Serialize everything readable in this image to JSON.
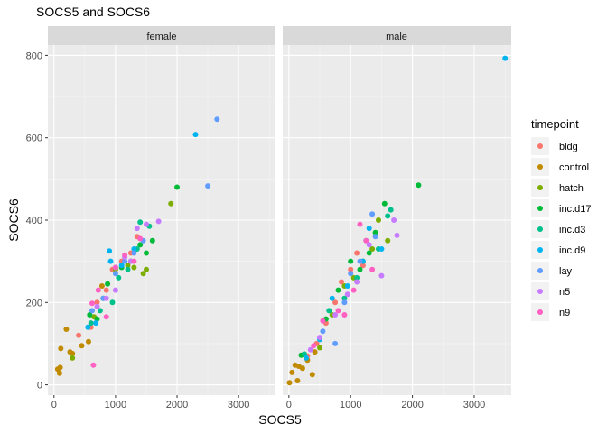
{
  "chart_data": {
    "type": "scatter",
    "title": "SOCS5 and SOCS6",
    "xlabel": "SOCS5",
    "ylabel": "SOCS6",
    "xlim": [
      -100,
      3600
    ],
    "ylim": [
      -25,
      825
    ],
    "x_ticks": [
      0,
      1000,
      2000,
      3000
    ],
    "y_ticks": [
      0,
      200,
      400,
      600,
      800
    ],
    "grid": true,
    "legend_position": "right",
    "legend_title": "timepoint",
    "panels": [
      "female",
      "male"
    ],
    "series": [
      {
        "name": "bldg",
        "color": "#F8766D"
      },
      {
        "name": "control",
        "color": "#C08B00"
      },
      {
        "name": "hatch",
        "color": "#7CAE00"
      },
      {
        "name": "inc.d17",
        "color": "#00BA38"
      },
      {
        "name": "inc.d3",
        "color": "#00C08B"
      },
      {
        "name": "inc.d9",
        "color": "#00B4F0"
      },
      {
        "name": "lay",
        "color": "#619CFF"
      },
      {
        "name": "n5",
        "color": "#C77CFF"
      },
      {
        "name": "n9",
        "color": "#FF61C3"
      }
    ],
    "points": {
      "female": [
        [
          60,
          38,
          "control"
        ],
        [
          90,
          28,
          "control"
        ],
        [
          100,
          42,
          "control"
        ],
        [
          110,
          88,
          "control"
        ],
        [
          200,
          135,
          "control"
        ],
        [
          260,
          80,
          "control"
        ],
        [
          300,
          76,
          "control"
        ],
        [
          450,
          95,
          "control"
        ],
        [
          560,
          105,
          "control"
        ],
        [
          780,
          240,
          "control"
        ],
        [
          400,
          120,
          "bldg"
        ],
        [
          600,
          140,
          "bldg"
        ],
        [
          700,
          200,
          "bldg"
        ],
        [
          850,
          230,
          "bldg"
        ],
        [
          950,
          280,
          "bldg"
        ],
        [
          1100,
          300,
          "bldg"
        ],
        [
          1250,
          320,
          "bldg"
        ],
        [
          1350,
          360,
          "bldg"
        ],
        [
          300,
          65,
          "hatch"
        ],
        [
          650,
          165,
          "hatch"
        ],
        [
          800,
          210,
          "hatch"
        ],
        [
          1000,
          280,
          "hatch"
        ],
        [
          1200,
          290,
          "hatch"
        ],
        [
          1300,
          285,
          "hatch"
        ],
        [
          1450,
          270,
          "hatch"
        ],
        [
          1500,
          280,
          "hatch"
        ],
        [
          1900,
          440,
          "hatch"
        ],
        [
          580,
          170,
          "inc.d17"
        ],
        [
          700,
          160,
          "inc.d17"
        ],
        [
          870,
          245,
          "inc.d17"
        ],
        [
          1100,
          285,
          "inc.d17"
        ],
        [
          1250,
          300,
          "inc.d17"
        ],
        [
          1400,
          340,
          "inc.d17"
        ],
        [
          1500,
          320,
          "inc.d17"
        ],
        [
          1600,
          350,
          "inc.d17"
        ],
        [
          2000,
          480,
          "inc.d17"
        ],
        [
          600,
          150,
          "inc.d3"
        ],
        [
          750,
          180,
          "inc.d3"
        ],
        [
          950,
          200,
          "inc.d3"
        ],
        [
          1050,
          260,
          "inc.d3"
        ],
        [
          1200,
          280,
          "inc.d3"
        ],
        [
          1350,
          330,
          "inc.d3"
        ],
        [
          1400,
          395,
          "inc.d3"
        ],
        [
          1550,
          385,
          "inc.d3"
        ],
        [
          550,
          140,
          "inc.d9"
        ],
        [
          680,
          150,
          "inc.d9"
        ],
        [
          900,
          325,
          "inc.d9"
        ],
        [
          920,
          300,
          "inc.d9"
        ],
        [
          1000,
          285,
          "inc.d9"
        ],
        [
          1100,
          290,
          "inc.d9"
        ],
        [
          1300,
          330,
          "inc.d9"
        ],
        [
          2300,
          608,
          "inc.d9"
        ],
        [
          620,
          180,
          "lay"
        ],
        [
          800,
          210,
          "lay"
        ],
        [
          1000,
          270,
          "lay"
        ],
        [
          1150,
          300,
          "lay"
        ],
        [
          1300,
          320,
          "lay"
        ],
        [
          1450,
          350,
          "lay"
        ],
        [
          2500,
          483,
          "lay"
        ],
        [
          2650,
          645,
          "lay"
        ],
        [
          700,
          190,
          "n5"
        ],
        [
          850,
          210,
          "n5"
        ],
        [
          1000,
          230,
          "n5"
        ],
        [
          1150,
          310,
          "n5"
        ],
        [
          1250,
          300,
          "n5"
        ],
        [
          1350,
          380,
          "n5"
        ],
        [
          1500,
          390,
          "n5"
        ],
        [
          1700,
          397,
          "n5"
        ],
        [
          620,
          198,
          "n9"
        ],
        [
          640,
          48,
          "n9"
        ],
        [
          720,
          230,
          "n9"
        ],
        [
          850,
          165,
          "n9"
        ],
        [
          1000,
          285,
          "n9"
        ],
        [
          1150,
          315,
          "n9"
        ],
        [
          1300,
          300,
          "n9"
        ],
        [
          1400,
          355,
          "n9"
        ]
      ],
      "male": [
        [
          10,
          5,
          "control"
        ],
        [
          50,
          30,
          "control"
        ],
        [
          100,
          48,
          "control"
        ],
        [
          140,
          10,
          "control"
        ],
        [
          160,
          45,
          "control"
        ],
        [
          220,
          40,
          "control"
        ],
        [
          300,
          60,
          "control"
        ],
        [
          380,
          25,
          "control"
        ],
        [
          420,
          80,
          "control"
        ],
        [
          300,
          70,
          "bldg"
        ],
        [
          450,
          100,
          "bldg"
        ],
        [
          600,
          150,
          "bldg"
        ],
        [
          750,
          200,
          "bldg"
        ],
        [
          850,
          250,
          "bldg"
        ],
        [
          1000,
          280,
          "bldg"
        ],
        [
          1100,
          320,
          "bldg"
        ],
        [
          1200,
          290,
          "bldg"
        ],
        [
          500,
          90,
          "hatch"
        ],
        [
          700,
          170,
          "hatch"
        ],
        [
          900,
          240,
          "hatch"
        ],
        [
          1050,
          260,
          "hatch"
        ],
        [
          1200,
          300,
          "hatch"
        ],
        [
          1350,
          330,
          "hatch"
        ],
        [
          1450,
          400,
          "hatch"
        ],
        [
          1600,
          350,
          "hatch"
        ],
        [
          200,
          72,
          "inc.d17"
        ],
        [
          600,
          160,
          "inc.d17"
        ],
        [
          800,
          230,
          "inc.d17"
        ],
        [
          1000,
          300,
          "inc.d17"
        ],
        [
          1150,
          280,
          "inc.d17"
        ],
        [
          1300,
          320,
          "inc.d17"
        ],
        [
          1400,
          370,
          "inc.d17"
        ],
        [
          1550,
          440,
          "inc.d17"
        ],
        [
          2100,
          485,
          "inc.d17"
        ],
        [
          250,
          75,
          "inc.d3"
        ],
        [
          650,
          180,
          "inc.d3"
        ],
        [
          900,
          210,
          "inc.d3"
        ],
        [
          1100,
          260,
          "inc.d3"
        ],
        [
          1250,
          350,
          "inc.d3"
        ],
        [
          1450,
          330,
          "inc.d3"
        ],
        [
          1600,
          410,
          "inc.d3"
        ],
        [
          1650,
          425,
          "inc.d3"
        ],
        [
          280,
          65,
          "inc.d9"
        ],
        [
          500,
          110,
          "inc.d9"
        ],
        [
          700,
          210,
          "inc.d9"
        ],
        [
          950,
          240,
          "inc.d9"
        ],
        [
          1200,
          300,
          "inc.d9"
        ],
        [
          1300,
          380,
          "inc.d9"
        ],
        [
          1500,
          330,
          "inc.d9"
        ],
        [
          3500,
          793,
          "inc.d9"
        ],
        [
          550,
          130,
          "lay"
        ],
        [
          750,
          100,
          "lay"
        ],
        [
          900,
          200,
          "lay"
        ],
        [
          1000,
          270,
          "lay"
        ],
        [
          1150,
          300,
          "lay"
        ],
        [
          1350,
          415,
          "lay"
        ],
        [
          1400,
          360,
          "lay"
        ],
        [
          350,
          85,
          "n5"
        ],
        [
          500,
          115,
          "n5"
        ],
        [
          750,
          170,
          "n5"
        ],
        [
          950,
          220,
          "n5"
        ],
        [
          1100,
          250,
          "n5"
        ],
        [
          1300,
          340,
          "n5"
        ],
        [
          1500,
          265,
          "n5"
        ],
        [
          1700,
          400,
          "n5"
        ],
        [
          1750,
          363,
          "n5"
        ],
        [
          400,
          95,
          "n9"
        ],
        [
          550,
          155,
          "n9"
        ],
        [
          800,
          180,
          "n9"
        ],
        [
          900,
          170,
          "n9"
        ],
        [
          1050,
          230,
          "n9"
        ],
        [
          1150,
          390,
          "n9"
        ],
        [
          1250,
          350,
          "n9"
        ],
        [
          1350,
          280,
          "n9"
        ]
      ]
    }
  }
}
